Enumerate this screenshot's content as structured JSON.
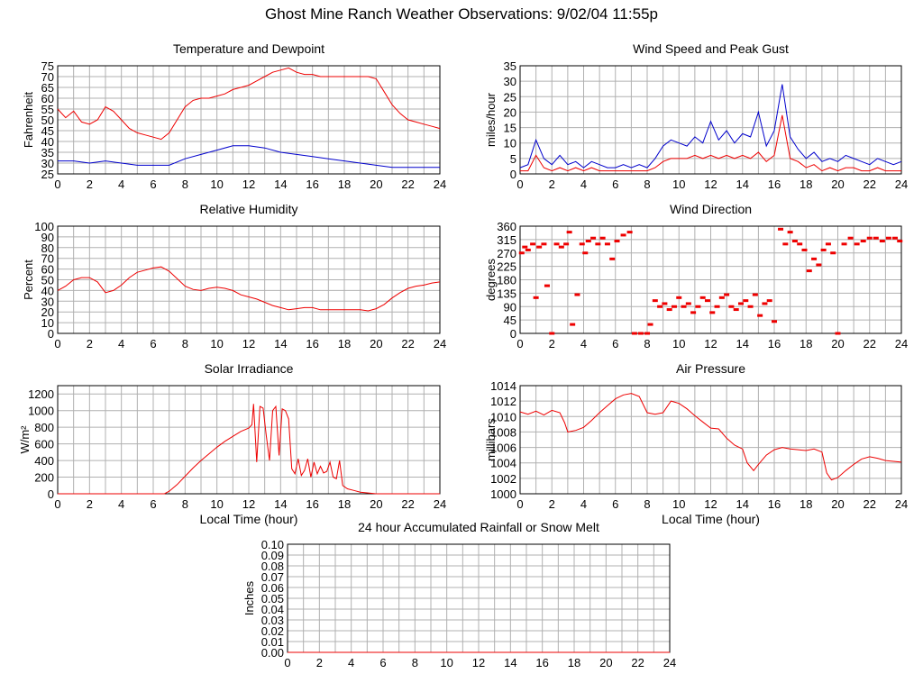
{
  "page": {
    "title": "Ghost Mine Ranch Weather Observations: 9/02/04 11:55p"
  },
  "colors": {
    "grid": "#b0b0b0",
    "red": "#ee0000",
    "blue": "#0000cc",
    "frame": "#000000"
  },
  "chart_data": [
    {
      "id": "temp",
      "type": "line",
      "title": "Temperature and Dewpoint",
      "ylabel": "Fahrenheit",
      "xlabel": "",
      "xlim": [
        0,
        24
      ],
      "ylim": [
        25,
        75
      ],
      "xticks": [
        0,
        2,
        4,
        6,
        8,
        10,
        12,
        14,
        16,
        18,
        20,
        22,
        24
      ],
      "yticks": [
        25,
        30,
        35,
        40,
        45,
        50,
        55,
        60,
        65,
        70,
        75
      ],
      "series": [
        {
          "color": "red",
          "x": [
            0,
            0.5,
            1,
            1.5,
            2,
            2.5,
            3,
            3.5,
            4,
            4.5,
            5,
            5.5,
            6,
            6.5,
            7,
            7.5,
            8,
            8.5,
            9,
            9.5,
            10,
            10.5,
            11,
            11.5,
            12,
            12.5,
            13,
            13.5,
            14,
            14.5,
            15,
            15.5,
            16,
            16.5,
            17,
            17.5,
            18,
            18.5,
            19,
            19.5,
            20,
            20.5,
            21,
            21.5,
            22,
            22.5,
            23,
            23.5,
            24
          ],
          "values": [
            55,
            51,
            54,
            49,
            48,
            50,
            56,
            54,
            50,
            46,
            44,
            43,
            42,
            41,
            44,
            50,
            56,
            59,
            60,
            60,
            61,
            62,
            64,
            65,
            66,
            68,
            70,
            72,
            73,
            74,
            72,
            71,
            71,
            70,
            70,
            70,
            70,
            70,
            70,
            70,
            69,
            63,
            57,
            53,
            50,
            49,
            48,
            47,
            46
          ]
        },
        {
          "color": "blue",
          "x": [
            0,
            1,
            2,
            3,
            4,
            5,
            6,
            7,
            8,
            9,
            10,
            11,
            12,
            13,
            14,
            15,
            16,
            17,
            18,
            19,
            20,
            21,
            22,
            23,
            24
          ],
          "values": [
            31,
            31,
            30,
            31,
            30,
            29,
            29,
            29,
            32,
            34,
            36,
            38,
            38,
            37,
            35,
            34,
            33,
            32,
            31,
            30,
            29,
            28,
            28,
            28,
            28
          ]
        }
      ]
    },
    {
      "id": "wind",
      "type": "line",
      "title": "Wind Speed and Peak Gust",
      "ylabel": "miles/hour",
      "xlabel": "",
      "xlim": [
        0,
        24
      ],
      "ylim": [
        0,
        35
      ],
      "xticks": [
        0,
        2,
        4,
        6,
        8,
        10,
        12,
        14,
        16,
        18,
        20,
        22,
        24
      ],
      "yticks": [
        0,
        5,
        10,
        15,
        20,
        25,
        30,
        35
      ],
      "series": [
        {
          "color": "blue",
          "x": [
            0,
            0.5,
            1,
            1.5,
            2,
            2.5,
            3,
            3.5,
            4,
            4.5,
            5,
            5.5,
            6,
            6.5,
            7,
            7.5,
            8,
            8.5,
            9,
            9.5,
            10,
            10.5,
            11,
            11.5,
            12,
            12.5,
            13,
            13.5,
            14,
            14.5,
            15,
            15.5,
            16,
            16.5,
            17,
            17.5,
            18,
            18.5,
            19,
            19.5,
            20,
            20.5,
            21,
            21.5,
            22,
            22.5,
            23,
            23.5,
            24
          ],
          "values": [
            2,
            3,
            11,
            5,
            3,
            6,
            3,
            4,
            2,
            4,
            3,
            2,
            2,
            3,
            2,
            3,
            2,
            5,
            9,
            11,
            10,
            9,
            12,
            10,
            17,
            11,
            14,
            10,
            13,
            12,
            20,
            9,
            14,
            29,
            12,
            8,
            5,
            7,
            4,
            5,
            4,
            6,
            5,
            4,
            3,
            5,
            4,
            3,
            4
          ]
        },
        {
          "color": "red",
          "x": [
            0,
            0.5,
            1,
            1.5,
            2,
            2.5,
            3,
            3.5,
            4,
            4.5,
            5,
            5.5,
            6,
            6.5,
            7,
            7.5,
            8,
            8.5,
            9,
            9.5,
            10,
            10.5,
            11,
            11.5,
            12,
            12.5,
            13,
            13.5,
            14,
            14.5,
            15,
            15.5,
            16,
            16.5,
            17,
            17.5,
            18,
            18.5,
            19,
            19.5,
            20,
            20.5,
            21,
            21.5,
            22,
            22.5,
            23,
            23.5,
            24
          ],
          "values": [
            1,
            1,
            6,
            2,
            1,
            2,
            1,
            2,
            1,
            2,
            1,
            1,
            1,
            1,
            1,
            1,
            1,
            2,
            4,
            5,
            5,
            5,
            6,
            5,
            6,
            5,
            6,
            5,
            6,
            5,
            7,
            4,
            6,
            19,
            5,
            4,
            2,
            3,
            1,
            2,
            1,
            2,
            2,
            1,
            1,
            2,
            1,
            1,
            1
          ]
        }
      ]
    },
    {
      "id": "rh",
      "type": "line",
      "title": "Relative Humidity",
      "ylabel": "Percent",
      "xlabel": "",
      "xlim": [
        0,
        24
      ],
      "ylim": [
        0,
        100
      ],
      "xticks": [
        0,
        2,
        4,
        6,
        8,
        10,
        12,
        14,
        16,
        18,
        20,
        22,
        24
      ],
      "yticks": [
        0,
        10,
        20,
        30,
        40,
        50,
        60,
        70,
        80,
        90,
        100
      ],
      "series": [
        {
          "color": "red",
          "x": [
            0,
            0.5,
            1,
            1.5,
            2,
            2.5,
            3,
            3.5,
            4,
            4.5,
            5,
            5.5,
            6,
            6.5,
            7,
            7.5,
            8,
            8.5,
            9,
            9.5,
            10,
            10.5,
            11,
            11.5,
            12,
            12.5,
            13,
            13.5,
            14,
            14.5,
            15,
            15.5,
            16,
            16.5,
            17,
            17.5,
            18,
            18.5,
            19,
            19.5,
            20,
            20.5,
            21,
            21.5,
            22,
            22.5,
            23,
            23.5,
            24
          ],
          "values": [
            40,
            44,
            50,
            52,
            52,
            48,
            38,
            40,
            45,
            52,
            57,
            59,
            61,
            62,
            58,
            51,
            44,
            41,
            40,
            42,
            43,
            42,
            40,
            36,
            34,
            32,
            29,
            26,
            24,
            22,
            23,
            24,
            24,
            22,
            22,
            22,
            22,
            22,
            22,
            21,
            23,
            27,
            33,
            38,
            42,
            44,
            45,
            47,
            48
          ]
        }
      ]
    },
    {
      "id": "wdir",
      "type": "scatter",
      "title": "Wind Direction",
      "ylabel": "degrees",
      "xlabel": "",
      "xlim": [
        0,
        24
      ],
      "ylim": [
        0,
        360
      ],
      "xticks": [
        0,
        2,
        4,
        6,
        8,
        10,
        12,
        14,
        16,
        18,
        20,
        22,
        24
      ],
      "yticks": [
        0,
        45,
        90,
        135,
        180,
        225,
        270,
        315,
        360
      ],
      "series": [
        {
          "color": "red",
          "x": [
            0.1,
            0.3,
            0.5,
            0.8,
            1.0,
            1.2,
            1.5,
            1.7,
            2.0,
            2.3,
            2.6,
            2.9,
            3.1,
            3.3,
            3.6,
            3.9,
            4.1,
            4.3,
            4.6,
            4.9,
            5.2,
            5.5,
            5.8,
            6.1,
            6.5,
            6.9,
            7.2,
            7.6,
            8.0,
            8.2,
            8.5,
            8.8,
            9.1,
            9.4,
            9.7,
            10.0,
            10.3,
            10.6,
            10.9,
            11.2,
            11.5,
            11.8,
            12.1,
            12.4,
            12.7,
            13.0,
            13.3,
            13.6,
            13.9,
            14.2,
            14.5,
            14.8,
            15.1,
            15.4,
            15.7,
            16.0,
            16.4,
            16.7,
            17.0,
            17.3,
            17.6,
            17.9,
            18.2,
            18.5,
            18.8,
            19.1,
            19.4,
            19.7,
            20.0,
            20.4,
            20.8,
            21.2,
            21.6,
            22.0,
            22.4,
            22.8,
            23.2,
            23.6,
            23.9
          ],
          "values": [
            270,
            290,
            280,
            300,
            120,
            290,
            300,
            160,
            0,
            300,
            290,
            300,
            340,
            30,
            130,
            300,
            270,
            310,
            320,
            300,
            320,
            300,
            250,
            310,
            330,
            340,
            0,
            0,
            0,
            30,
            110,
            90,
            100,
            80,
            90,
            120,
            90,
            100,
            70,
            90,
            120,
            110,
            70,
            90,
            120,
            130,
            90,
            80,
            100,
            110,
            90,
            130,
            60,
            100,
            110,
            40,
            350,
            300,
            340,
            310,
            300,
            280,
            210,
            250,
            230,
            280,
            300,
            270,
            0,
            300,
            320,
            300,
            310,
            320,
            320,
            310,
            320,
            320,
            310
          ]
        }
      ]
    },
    {
      "id": "solar",
      "type": "line",
      "title": "Solar Irradiance",
      "ylabel": "W/m²",
      "xlabel": "Local Time (hour)",
      "xlim": [
        0,
        24
      ],
      "ylim": [
        0,
        1300
      ],
      "xticks": [
        0,
        2,
        4,
        6,
        8,
        10,
        12,
        14,
        16,
        18,
        20,
        22,
        24
      ],
      "yticks": [
        0,
        200,
        400,
        600,
        800,
        1000,
        1200
      ],
      "series": [
        {
          "color": "red",
          "x": [
            0,
            6.7,
            7,
            7.5,
            8,
            8.5,
            9,
            9.5,
            10,
            10.5,
            11,
            11.5,
            12,
            12.2,
            12.3,
            12.5,
            12.7,
            12.9,
            13.1,
            13.3,
            13.5,
            13.7,
            13.9,
            14.1,
            14.3,
            14.5,
            14.7,
            14.9,
            15.1,
            15.3,
            15.5,
            15.7,
            15.9,
            16.1,
            16.3,
            16.5,
            16.7,
            16.9,
            17.1,
            17.3,
            17.5,
            17.7,
            17.9,
            18.2,
            18.6,
            19,
            19.5,
            20,
            24
          ],
          "values": [
            0,
            0,
            30,
            110,
            210,
            310,
            400,
            480,
            560,
            630,
            690,
            750,
            790,
            830,
            1080,
            380,
            1050,
            1030,
            700,
            400,
            1000,
            1050,
            460,
            1020,
            1000,
            900,
            300,
            240,
            420,
            220,
            280,
            420,
            200,
            380,
            240,
            330,
            250,
            270,
            380,
            200,
            180,
            400,
            100,
            60,
            40,
            20,
            10,
            0,
            0
          ]
        }
      ]
    },
    {
      "id": "pres",
      "type": "line",
      "title": "Air Pressure",
      "ylabel": "millibars",
      "xlabel": "Local Time (hour)",
      "xlim": [
        0,
        24
      ],
      "ylim": [
        1000,
        1014
      ],
      "xticks": [
        0,
        2,
        4,
        6,
        8,
        10,
        12,
        14,
        16,
        18,
        20,
        22,
        24
      ],
      "yticks": [
        1000,
        1002,
        1004,
        1006,
        1008,
        1010,
        1012,
        1014
      ],
      "series": [
        {
          "color": "red",
          "x": [
            0,
            0.5,
            1,
            1.5,
            2,
            2.5,
            2.8,
            3,
            3.5,
            4,
            4.5,
            5,
            5.5,
            6,
            6.5,
            7,
            7.5,
            8,
            8.5,
            9,
            9.5,
            10,
            10.5,
            11,
            11.5,
            12,
            12.5,
            13,
            13.5,
            14,
            14.3,
            14.7,
            15,
            15.5,
            16,
            16.5,
            17,
            17.5,
            18,
            18.5,
            19,
            19.3,
            19.6,
            20,
            20.5,
            21,
            21.5,
            22,
            22.5,
            23,
            23.5,
            24
          ],
          "values": [
            1010.6,
            1010.3,
            1010.7,
            1010.2,
            1010.8,
            1010.5,
            1009.2,
            1008,
            1008.2,
            1008.6,
            1009.5,
            1010.5,
            1011.4,
            1012.3,
            1012.8,
            1013,
            1012.6,
            1010.5,
            1010.3,
            1010.5,
            1012,
            1011.7,
            1011,
            1010.1,
            1009.3,
            1008.5,
            1008.4,
            1007.2,
            1006.3,
            1005.8,
            1004,
            1003,
            1003.8,
            1005,
            1005.7,
            1006,
            1005.8,
            1005.7,
            1005.6,
            1005.8,
            1005.4,
            1002.7,
            1001.8,
            1002.1,
            1003,
            1003.8,
            1004.5,
            1004.8,
            1004.6,
            1004.3,
            1004.2,
            1004.1
          ]
        }
      ]
    },
    {
      "id": "rain",
      "type": "line",
      "title": "24 hour Accumulated Rainfall or Snow Melt",
      "ylabel": "Inches",
      "xlabel": "",
      "xlim": [
        0,
        24
      ],
      "ylim": [
        0,
        0.1
      ],
      "xticks": [
        0,
        2,
        4,
        6,
        8,
        10,
        12,
        14,
        16,
        18,
        20,
        22,
        24
      ],
      "yticks": [
        0,
        0.01,
        0.02,
        0.03,
        0.04,
        0.05,
        0.06,
        0.07,
        0.08,
        0.09,
        0.1
      ],
      "ytick_decimals": 2,
      "series": [
        {
          "color": "red",
          "x": [
            0,
            24
          ],
          "values": [
            0,
            0
          ]
        }
      ]
    }
  ]
}
